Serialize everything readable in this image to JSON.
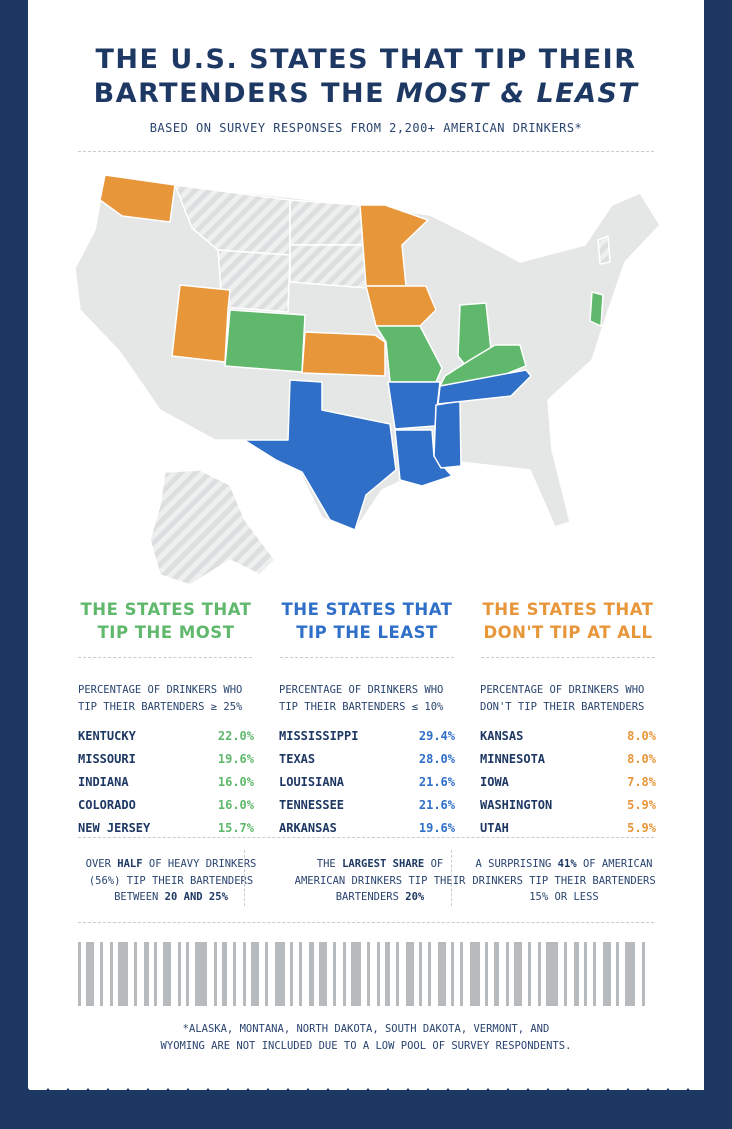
{
  "title": {
    "line1": "THE U.S. STATES THAT TIP THEIR",
    "line2_prefix": "BARTENDERS THE ",
    "line2_emph": "MOST & LEAST"
  },
  "subtitle": "BASED ON SURVEY RESPONSES FROM 2,200+ AMERICAN DRINKERS*",
  "colors": {
    "most": "#5fb86c",
    "least": "#2f6fc8",
    "none": "#e8963a",
    "base": "#e5e6e6",
    "navy": "#1e3864"
  },
  "map": {
    "most": [
      "Kentucky",
      "Missouri",
      "Indiana",
      "Colorado",
      "New Jersey"
    ],
    "least": [
      "Mississippi",
      "Texas",
      "Louisiana",
      "Tennessee",
      "Arkansas"
    ],
    "none": [
      "Kansas",
      "Minnesota",
      "Iowa",
      "Washington",
      "Utah"
    ],
    "excluded": [
      "Alaska",
      "Montana",
      "North Dakota",
      "South Dakota",
      "Vermont",
      "Wyoming"
    ]
  },
  "columns": [
    {
      "heading1": "THE STATES THAT",
      "heading2": "TIP THE MOST",
      "desc1": "PERCENTAGE OF DRINKERS WHO",
      "desc2": "TIP THEIR BARTENDERS ≥ 25%",
      "rows": [
        {
          "state": "KENTUCKY",
          "value": "22.0%"
        },
        {
          "state": "MISSOURI",
          "value": "19.6%"
        },
        {
          "state": "INDIANA",
          "value": "16.0%"
        },
        {
          "state": "COLORADO",
          "value": "16.0%"
        },
        {
          "state": "NEW JERSEY",
          "value": "15.7%"
        }
      ]
    },
    {
      "heading1": "THE STATES THAT",
      "heading2": "TIP THE LEAST",
      "desc1": "PERCENTAGE OF DRINKERS WHO",
      "desc2": "TIP THEIR BARTENDERS ≤ 10%",
      "rows": [
        {
          "state": "MISSISSIPPI",
          "value": "29.4%"
        },
        {
          "state": "TEXAS",
          "value": "28.0%"
        },
        {
          "state": "LOUISIANA",
          "value": "21.6%"
        },
        {
          "state": "TENNESSEE",
          "value": "21.6%"
        },
        {
          "state": "ARKANSAS",
          "value": "19.6%"
        }
      ]
    },
    {
      "heading1": "THE STATES THAT",
      "heading2": "DON'T TIP AT ALL",
      "desc1": "PERCENTAGE OF DRINKERS WHO",
      "desc2": "DON'T TIP THEIR BARTENDERS",
      "rows": [
        {
          "state": "KANSAS",
          "value": "8.0%"
        },
        {
          "state": "MINNESOTA",
          "value": "8.0%"
        },
        {
          "state": "IOWA",
          "value": "7.8%"
        },
        {
          "state": "WASHINGTON",
          "value": "5.9%"
        },
        {
          "state": "UTAH",
          "value": "5.9%"
        }
      ]
    }
  ],
  "facts": [
    {
      "a": "OVER ",
      "b": "HALF",
      "c": " OF HEAVY DRINKERS (56%) TIP THEIR BARTENDERS BETWEEN ",
      "d": "20 AND 25%",
      "e": ""
    },
    {
      "a": "THE ",
      "b": "LARGEST SHARE",
      "c": " OF AMERICAN DRINKERS TIP THEIR BARTENDERS ",
      "d": "20%",
      "e": ""
    },
    {
      "a": "A SURPRISING ",
      "b": "41%",
      "c": " OF AMERICAN DRINKERS TIP THEIR BARTENDERS 15% OR LESS",
      "d": "",
      "e": ""
    }
  ],
  "footnote1": "*ALASKA, MONTANA, NORTH DAKOTA, SOUTH DAKOTA, VERMONT, AND",
  "footnote2": "WYOMING ARE NOT INCLUDED DUE TO A LOW POOL OF SURVEY RESPONDENTS."
}
